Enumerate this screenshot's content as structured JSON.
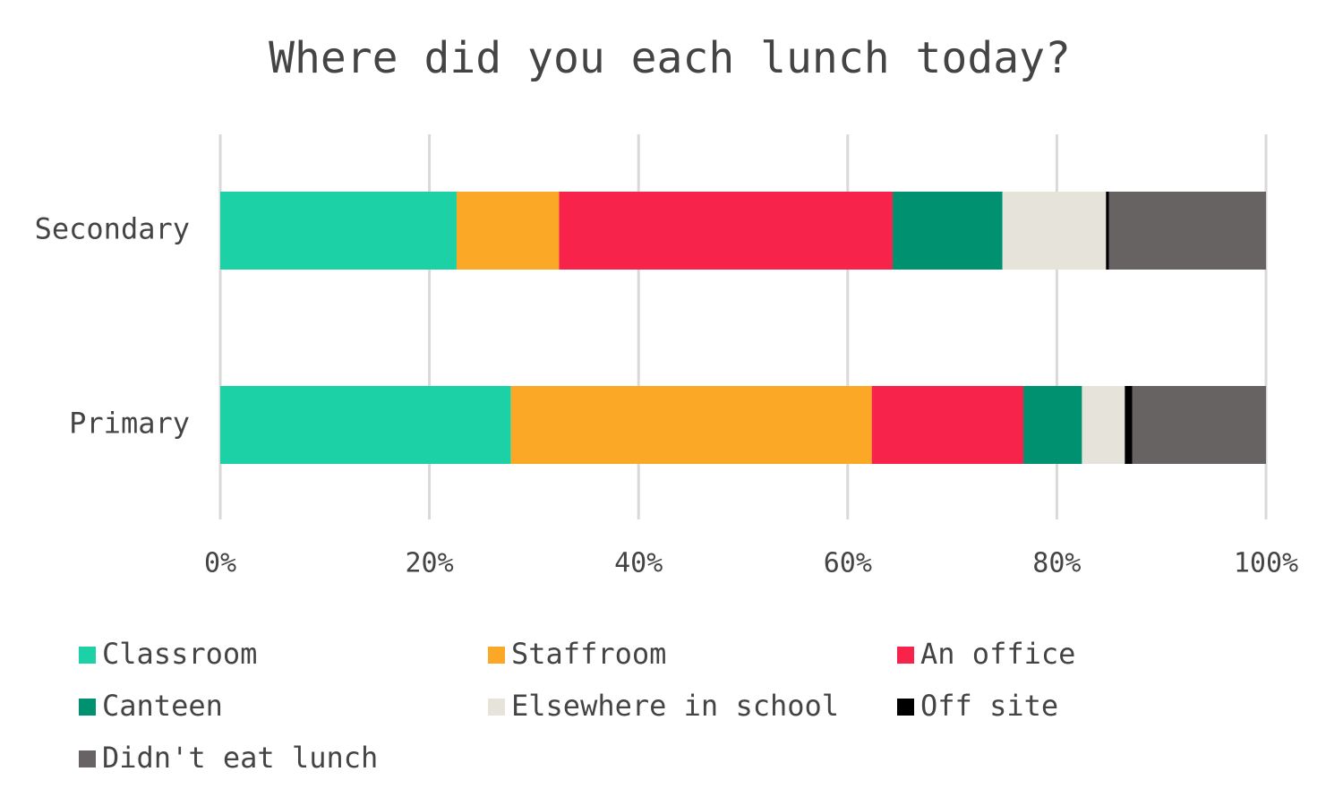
{
  "chart_data": {
    "type": "stacked-bar-horizontal",
    "title": "Where did you each lunch today?",
    "categories": [
      "Secondary",
      "Primary"
    ],
    "series": [
      {
        "name": "Classroom",
        "color": "#1dd1a6",
        "values": [
          22.6,
          27.8
        ]
      },
      {
        "name": "Staffroom",
        "color": "#fba826",
        "values": [
          9.8,
          34.5
        ]
      },
      {
        "name": "An office",
        "color": "#f7234a",
        "values": [
          31.9,
          14.5
        ]
      },
      {
        "name": "Canteen",
        "color": "#009170",
        "values": [
          10.5,
          5.6
        ]
      },
      {
        "name": "Elsewhere in school",
        "color": "#e6e3da",
        "values": [
          9.9,
          4.1
        ]
      },
      {
        "name": "Off site",
        "color": "#000000",
        "values": [
          0.3,
          0.7
        ]
      },
      {
        "name": "Didn't eat lunch",
        "color": "#676362",
        "values": [
          15.0,
          12.8
        ]
      }
    ],
    "xlim": [
      0,
      100
    ],
    "xticks": [
      {
        "value": 0,
        "label": "0%"
      },
      {
        "value": 20,
        "label": "20%"
      },
      {
        "value": 40,
        "label": "40%"
      },
      {
        "value": 60,
        "label": "60%"
      },
      {
        "value": 80,
        "label": "80%"
      },
      {
        "value": 100,
        "label": "100%"
      }
    ],
    "grid": true,
    "legend": "bottom"
  }
}
